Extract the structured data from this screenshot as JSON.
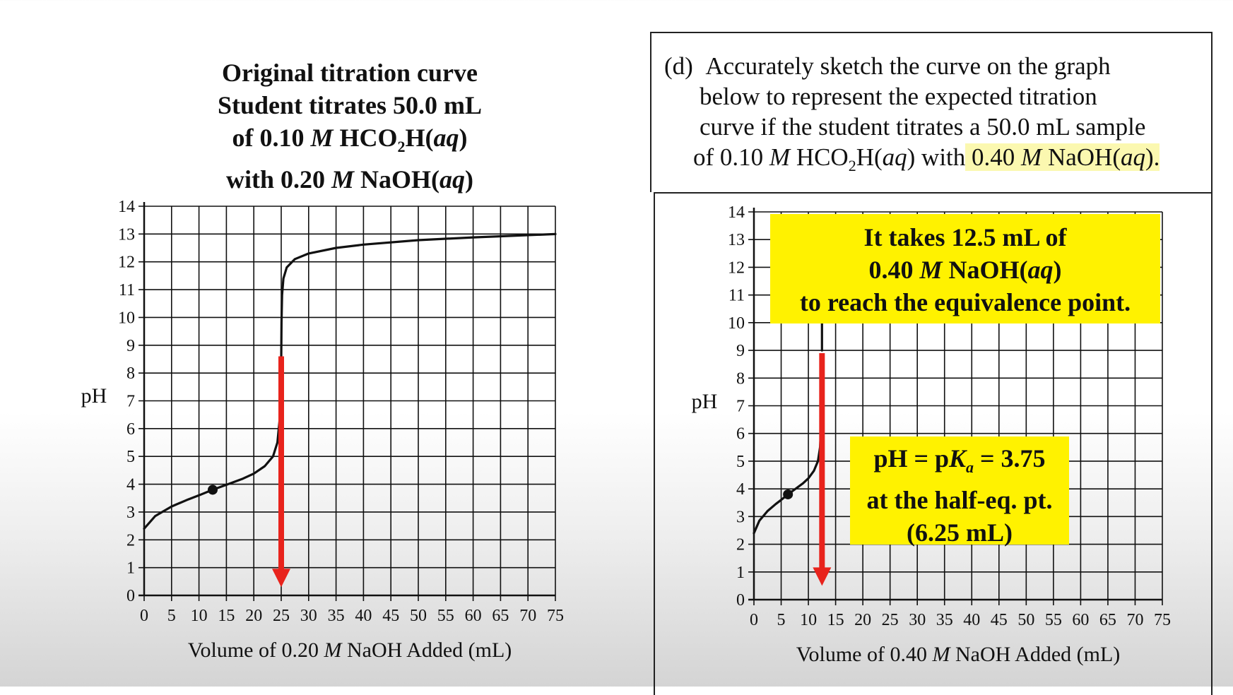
{
  "left_title": {
    "line1": "Original titration curve",
    "line2": "Student titrates 50.0 mL",
    "line3_a": "of 0.10 ",
    "line3_m": "M",
    "line3_b": " HCO",
    "line3_sub": "2",
    "line3_c": "H(",
    "line3_aq": "aq",
    "line3_d": ")",
    "line4_a": "with 0.20 ",
    "line4_m": "M",
    "line4_b": " NaOH(",
    "line4_aq": "aq",
    "line4_c": ")"
  },
  "question": {
    "label": "(d)",
    "line1": "Accurately sketch the curve on the graph",
    "line2": "below to represent the expected titration",
    "line3": "curve if the student titrates a 50.0 mL sample",
    "line4_a": "of 0.10 ",
    "line4_m": "M",
    "line4_b": " HCO",
    "line4_sub": "2",
    "line4_c": "H(",
    "line4_aq": "aq",
    "line4_d": ") with",
    "line4_hl_a": " 0.40 ",
    "line4_hl_m": "M",
    "line4_hl_b": " NaOH(",
    "line4_hl_aq": "aq",
    "line4_hl_c": ")."
  },
  "callout_top": {
    "line1": "It takes 12.5 mL of",
    "line2_a": "0.40 ",
    "line2_m": "M",
    "line2_b": " NaOH(",
    "line2_aq": "aq",
    "line2_c": ")",
    "line3": "to reach the equivalence point."
  },
  "callout_bottom": {
    "line1_a": "pH = p",
    "line1_k": "K",
    "line1_sub": "a",
    "line1_b": " = 3.75",
    "line2": "at the half-eq. pt.",
    "line3": "(6.25 mL)"
  },
  "colors": {
    "curve": "#111111",
    "arrow": "#e8231c",
    "callout": "#fff200",
    "highlight": "#fbf8b0",
    "grid": "#111111"
  },
  "chart_data": [
    {
      "type": "line",
      "title": "",
      "ylabel": "pH",
      "xlabel_a": "Volume of 0.20 ",
      "xlabel_m": "M",
      "xlabel_b": " NaOH Added (mL)",
      "xlim": [
        0,
        75
      ],
      "ylim": [
        0,
        14
      ],
      "xticks": [
        0,
        5,
        10,
        15,
        20,
        25,
        30,
        35,
        40,
        45,
        50,
        55,
        60,
        65,
        70,
        75
      ],
      "yticks": [
        0,
        1,
        2,
        3,
        4,
        5,
        6,
        7,
        8,
        9,
        10,
        11,
        12,
        13,
        14
      ],
      "grid": true,
      "series": [
        {
          "x": [
            0,
            2,
            5,
            8,
            10,
            12.5,
            15,
            18,
            20,
            22,
            23.5,
            24.3,
            24.7,
            24.9,
            25,
            25.05,
            25.15,
            25.4,
            26,
            27.5,
            30,
            35,
            40,
            50,
            60,
            75
          ],
          "y": [
            2.4,
            2.85,
            3.2,
            3.45,
            3.6,
            3.8,
            3.98,
            4.2,
            4.38,
            4.65,
            5.0,
            5.5,
            6.3,
            7.5,
            8.5,
            9.8,
            10.8,
            11.4,
            11.8,
            12.1,
            12.3,
            12.5,
            12.62,
            12.78,
            12.88,
            13.0
          ]
        }
      ],
      "marker": {
        "x": 12.5,
        "y": 3.8
      },
      "arrow": {
        "x": 25,
        "y_from": 8.6,
        "y_to": 0.3
      }
    },
    {
      "type": "line",
      "title": "",
      "ylabel": "pH",
      "xlabel_a": "Volume of 0.40 ",
      "xlabel_m": "M",
      "xlabel_b": " NaOH Added (mL)",
      "xlim": [
        0,
        75
      ],
      "ylim": [
        0,
        14
      ],
      "xticks": [
        0,
        5,
        10,
        15,
        20,
        25,
        30,
        35,
        40,
        45,
        50,
        55,
        60,
        65,
        70,
        75
      ],
      "yticks": [
        0,
        1,
        2,
        3,
        4,
        5,
        6,
        7,
        8,
        9,
        10,
        11,
        12,
        13,
        14
      ],
      "grid": true,
      "series": [
        {
          "x": [
            0,
            1,
            2.5,
            4,
            5,
            6.25,
            7.5,
            9,
            10,
            11,
            11.75,
            12.15,
            12.35,
            12.45,
            12.5
          ],
          "y": [
            2.4,
            2.85,
            3.2,
            3.45,
            3.6,
            3.8,
            3.98,
            4.2,
            4.38,
            4.65,
            5.0,
            5.5,
            6.3,
            7.5,
            8.5
          ]
        },
        {
          "x": [
            12.5,
            12.5
          ],
          "y": [
            9.0,
            10.0
          ]
        }
      ],
      "marker": {
        "x": 6.25,
        "y": 3.8
      },
      "arrow": {
        "x": 12.5,
        "y_from": 8.9,
        "y_to": 0.5
      }
    }
  ]
}
